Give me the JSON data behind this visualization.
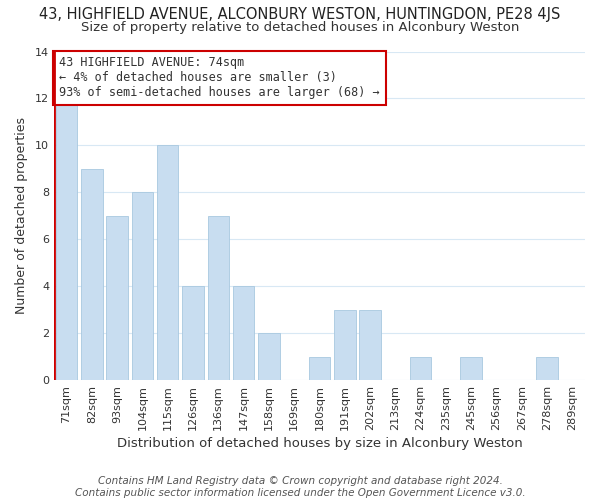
{
  "title": "43, HIGHFIELD AVENUE, ALCONBURY WESTON, HUNTINGDON, PE28 4JS",
  "subtitle": "Size of property relative to detached houses in Alconbury Weston",
  "xlabel": "Distribution of detached houses by size in Alconbury Weston",
  "ylabel": "Number of detached properties",
  "categories": [
    "71sqm",
    "82sqm",
    "93sqm",
    "104sqm",
    "115sqm",
    "126sqm",
    "136sqm",
    "147sqm",
    "158sqm",
    "169sqm",
    "180sqm",
    "191sqm",
    "202sqm",
    "213sqm",
    "224sqm",
    "235sqm",
    "245sqm",
    "256sqm",
    "267sqm",
    "278sqm",
    "289sqm"
  ],
  "values": [
    12,
    9,
    7,
    8,
    10,
    4,
    7,
    4,
    2,
    0,
    1,
    3,
    3,
    0,
    1,
    0,
    1,
    0,
    0,
    1,
    0
  ],
  "bar_color": "#c8ddf0",
  "bar_edge_color": "#a8c8e0",
  "vline_color": "#cc0000",
  "annotation_line1": "43 HIGHFIELD AVENUE: 74sqm",
  "annotation_line2": "← 4% of detached houses are smaller (3)",
  "annotation_line3": "93% of semi-detached houses are larger (68) →",
  "annotation_box_color": "#ffffff",
  "annotation_border_color": "#cc0000",
  "ylim": [
    0,
    14
  ],
  "yticks": [
    0,
    2,
    4,
    6,
    8,
    10,
    12,
    14
  ],
  "footer_line1": "Contains HM Land Registry data © Crown copyright and database right 2024.",
  "footer_line2": "Contains public sector information licensed under the Open Government Licence v3.0.",
  "background_color": "#ffffff",
  "grid_color": "#d8e8f4",
  "title_fontsize": 10.5,
  "subtitle_fontsize": 9.5,
  "xlabel_fontsize": 9.5,
  "ylabel_fontsize": 9,
  "tick_fontsize": 8,
  "annotation_fontsize": 8.5,
  "footer_fontsize": 7.5
}
